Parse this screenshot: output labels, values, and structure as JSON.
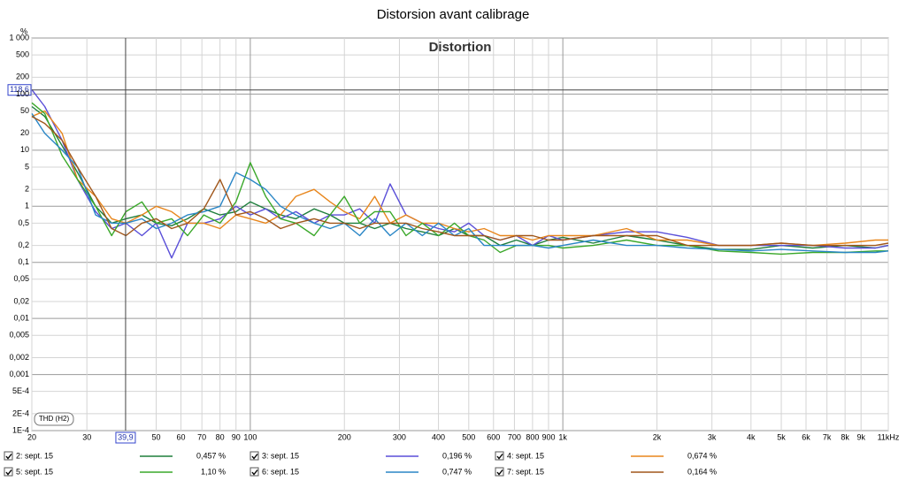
{
  "chart_data": {
    "type": "line",
    "title": "Distorsion avant calibrage",
    "plot_title": "Distortion",
    "y_unit": "%",
    "badge": "THD (H2)",
    "log_x": true,
    "log_y": true,
    "grid": true,
    "xlim": [
      20,
      11000
    ],
    "ylim": [
      0.0001,
      1000
    ],
    "xticks": [
      20,
      30,
      50,
      60,
      70,
      80,
      90,
      100,
      200,
      300,
      400,
      500,
      600,
      700,
      800,
      900,
      {
        "value": 1000,
        "label": "1k"
      },
      {
        "value": 2000,
        "label": "2k"
      },
      {
        "value": 3000,
        "label": "3k"
      },
      {
        "value": 4000,
        "label": "4k"
      },
      {
        "value": 5000,
        "label": "5k"
      },
      {
        "value": 6000,
        "label": "6k"
      },
      {
        "value": 7000,
        "label": "7k"
      },
      {
        "value": 8000,
        "label": "8k"
      },
      {
        "value": 9000,
        "label": "9k"
      },
      {
        "value": 11000,
        "label": "11kHz"
      }
    ],
    "yticks": [
      {
        "value": 1000,
        "label": "1 000"
      },
      500,
      200,
      100,
      50,
      20,
      10,
      5,
      2,
      1,
      {
        "value": 0.5,
        "label": "0,5"
      },
      {
        "value": 0.2,
        "label": "0,2"
      },
      {
        "value": 0.1,
        "label": "0,1"
      },
      {
        "value": 0.05,
        "label": "0,05"
      },
      {
        "value": 0.02,
        "label": "0,02"
      },
      {
        "value": 0.01,
        "label": "0,01"
      },
      {
        "value": 0.005,
        "label": "0,005"
      },
      {
        "value": 0.002,
        "label": "0,002"
      },
      {
        "value": 0.001,
        "label": "0,001"
      },
      {
        "value": 0.0005,
        "label": "5E-4"
      },
      {
        "value": 0.0002,
        "label": "2E-4"
      },
      {
        "value": 0.0001,
        "label": "1E-4"
      }
    ],
    "cursor": {
      "x": 39.9,
      "x_label": "39,9",
      "y": 118.6,
      "y_label": "118,6"
    },
    "x": [
      20,
      22,
      25,
      28,
      32,
      36,
      40,
      45,
      50,
      56,
      63,
      71,
      80,
      90,
      100,
      112,
      125,
      140,
      160,
      180,
      200,
      224,
      250,
      280,
      315,
      355,
      400,
      450,
      500,
      560,
      630,
      710,
      800,
      900,
      1000,
      1250,
      1600,
      2000,
      2500,
      3150,
      4000,
      5000,
      6300,
      8000,
      10000,
      11000
    ],
    "series": [
      {
        "name": "2: sept. 15",
        "color": "#1e7e3c",
        "readout": "0,457 %",
        "values": [
          60,
          40,
          12,
          4,
          1,
          0.5,
          0.6,
          0.7,
          0.5,
          0.45,
          0.6,
          0.9,
          0.7,
          0.8,
          1.2,
          0.9,
          0.7,
          0.6,
          0.9,
          0.7,
          0.5,
          0.5,
          0.4,
          0.5,
          0.4,
          0.35,
          0.3,
          0.4,
          0.3,
          0.3,
          0.2,
          0.25,
          0.2,
          0.25,
          0.28,
          0.22,
          0.3,
          0.25,
          0.2,
          0.17,
          0.17,
          0.2,
          0.18,
          0.2,
          0.18,
          0.2
        ]
      },
      {
        "name": "3: sept. 15",
        "color": "#5a4fd8",
        "readout": "0,196 %",
        "values": [
          120,
          60,
          15,
          3,
          0.8,
          0.4,
          0.5,
          0.3,
          0.5,
          0.12,
          0.5,
          0.5,
          0.6,
          1,
          0.7,
          0.9,
          0.6,
          0.8,
          0.5,
          0.7,
          0.7,
          0.9,
          0.5,
          2.5,
          0.7,
          0.5,
          0.4,
          0.35,
          0.5,
          0.3,
          0.25,
          0.3,
          0.2,
          0.3,
          0.25,
          0.3,
          0.35,
          0.35,
          0.28,
          0.2,
          0.2,
          0.2,
          0.2,
          0.18,
          0.18,
          0.2
        ]
      },
      {
        "name": "4: sept. 15",
        "color": "#e8861c",
        "readout": "0,674 %",
        "values": [
          40,
          50,
          20,
          3,
          1.5,
          0.6,
          0.5,
          0.7,
          1,
          0.8,
          0.5,
          0.5,
          0.4,
          0.7,
          0.6,
          0.5,
          0.7,
          1.5,
          2,
          1.2,
          0.8,
          0.6,
          1.5,
          0.5,
          0.7,
          0.5,
          0.5,
          0.4,
          0.35,
          0.4,
          0.3,
          0.3,
          0.25,
          0.3,
          0.3,
          0.3,
          0.4,
          0.25,
          0.25,
          0.2,
          0.2,
          0.22,
          0.2,
          0.22,
          0.25,
          0.25
        ]
      },
      {
        "name": "5: sept. 15",
        "color": "#3aa82a",
        "readout": "1,10 %",
        "values": [
          70,
          45,
          8,
          3,
          1,
          0.3,
          0.8,
          1.2,
          0.5,
          0.6,
          0.3,
          0.7,
          0.5,
          1.2,
          6,
          1.5,
          0.6,
          0.5,
          0.3,
          0.7,
          1.5,
          0.5,
          0.8,
          0.8,
          0.3,
          0.5,
          0.3,
          0.5,
          0.3,
          0.25,
          0.15,
          0.2,
          0.2,
          0.2,
          0.18,
          0.2,
          0.25,
          0.2,
          0.2,
          0.16,
          0.15,
          0.14,
          0.15,
          0.15,
          0.16,
          0.16
        ]
      },
      {
        "name": "6: sept. 15",
        "color": "#2a86c6",
        "readout": "0,747 %",
        "values": [
          45,
          20,
          10,
          5,
          0.7,
          0.5,
          0.5,
          0.6,
          0.4,
          0.5,
          0.7,
          0.8,
          1,
          4,
          3,
          2,
          1,
          0.7,
          0.5,
          0.4,
          0.5,
          0.3,
          0.6,
          0.3,
          0.5,
          0.3,
          0.5,
          0.3,
          0.4,
          0.2,
          0.2,
          0.2,
          0.2,
          0.18,
          0.2,
          0.25,
          0.2,
          0.2,
          0.18,
          0.17,
          0.16,
          0.17,
          0.16,
          0.15,
          0.15,
          0.16
        ]
      },
      {
        "name": "7: sept. 15",
        "color": "#a0561a",
        "readout": "0,164 %",
        "values": [
          40,
          30,
          15,
          5,
          1.5,
          0.4,
          0.3,
          0.5,
          0.6,
          0.4,
          0.5,
          0.9,
          3,
          0.7,
          0.8,
          0.6,
          0.4,
          0.5,
          0.6,
          0.5,
          0.5,
          0.4,
          0.5,
          0.5,
          0.5,
          0.4,
          0.35,
          0.3,
          0.3,
          0.3,
          0.25,
          0.3,
          0.3,
          0.25,
          0.25,
          0.3,
          0.3,
          0.3,
          0.2,
          0.2,
          0.2,
          0.22,
          0.2,
          0.2,
          0.2,
          0.22
        ]
      }
    ]
  }
}
